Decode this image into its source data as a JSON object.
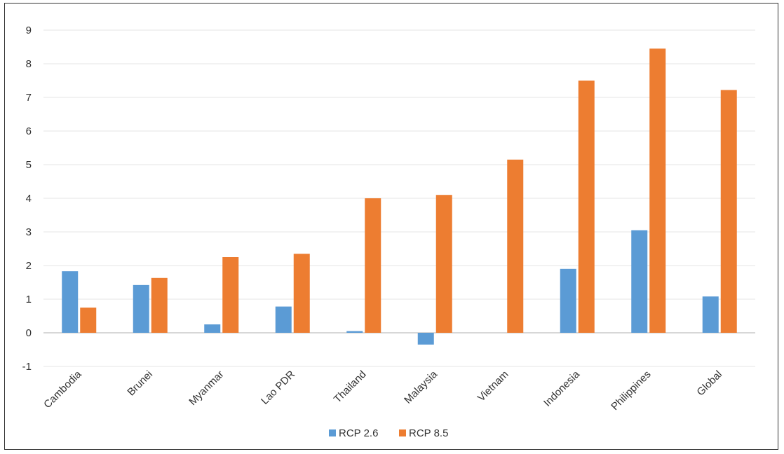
{
  "chart_data": {
    "type": "bar",
    "categories": [
      "Cambodia",
      "Brunei",
      "Myanmar",
      "Lao PDR",
      "Thailand",
      "Malaysia",
      "Vietnam",
      "Indonesia",
      "Philippines",
      "Global"
    ],
    "series": [
      {
        "name": "RCP 2.6",
        "color": "#5b9bd5",
        "values": [
          1.83,
          1.42,
          0.25,
          0.78,
          0.05,
          -0.35,
          0.0,
          1.9,
          3.05,
          1.08
        ]
      },
      {
        "name": "RCP 8.5",
        "color": "#ed7d31",
        "values": [
          0.75,
          1.63,
          2.25,
          2.35,
          4.0,
          4.1,
          5.15,
          7.5,
          8.45,
          7.22
        ]
      }
    ],
    "yticks": [
      "-1",
      "0",
      "1",
      "2",
      "3",
      "4",
      "5",
      "6",
      "7",
      "8",
      "9"
    ],
    "ylim": [
      -1,
      9
    ],
    "grid": true,
    "legend": "bottom-center",
    "title": "",
    "xlabel": "",
    "ylabel": ""
  }
}
